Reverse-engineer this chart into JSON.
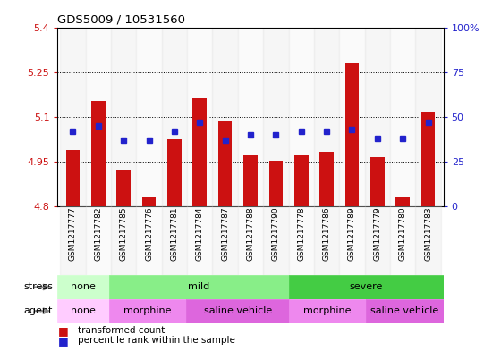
{
  "title": "GDS5009 / 10531560",
  "samples": [
    "GSM1217777",
    "GSM1217782",
    "GSM1217785",
    "GSM1217776",
    "GSM1217781",
    "GSM1217784",
    "GSM1217787",
    "GSM1217788",
    "GSM1217790",
    "GSM1217778",
    "GSM1217786",
    "GSM1217789",
    "GSM1217779",
    "GSM1217780",
    "GSM1217783"
  ],
  "bar_values": [
    4.99,
    5.155,
    4.925,
    4.83,
    5.025,
    5.165,
    5.085,
    4.975,
    4.955,
    4.975,
    4.985,
    5.285,
    4.965,
    4.83,
    5.12
  ],
  "dot_values": [
    42,
    45,
    37,
    37,
    42,
    47,
    37,
    40,
    40,
    42,
    42,
    43,
    38,
    38,
    47
  ],
  "bar_bottom": 4.8,
  "ylim_left": [
    4.8,
    5.4
  ],
  "ylim_right": [
    0,
    100
  ],
  "yticks_left": [
    4.8,
    4.95,
    5.1,
    5.25,
    5.4
  ],
  "yticks_right": [
    0,
    25,
    50,
    75,
    100
  ],
  "ytick_labels_left": [
    "4.8",
    "4.95",
    "5.1",
    "5.25",
    "5.4"
  ],
  "ytick_labels_right": [
    "0",
    "25",
    "50",
    "75",
    "100%"
  ],
  "hlines": [
    4.95,
    5.1,
    5.25
  ],
  "bar_color": "#cc1111",
  "dot_color": "#2222cc",
  "stress_groups": [
    {
      "label": "none",
      "start": 0,
      "end": 2,
      "color": "#ccffcc"
    },
    {
      "label": "mild",
      "start": 2,
      "end": 9,
      "color": "#88ee88"
    },
    {
      "label": "severe",
      "start": 9,
      "end": 15,
      "color": "#44cc44"
    }
  ],
  "agent_groups": [
    {
      "label": "none",
      "start": 0,
      "end": 2,
      "color": "#ffccff"
    },
    {
      "label": "morphine",
      "start": 2,
      "end": 5,
      "color": "#ee88ee"
    },
    {
      "label": "saline vehicle",
      "start": 5,
      "end": 9,
      "color": "#dd66dd"
    },
    {
      "label": "morphine",
      "start": 9,
      "end": 12,
      "color": "#ee88ee"
    },
    {
      "label": "saline vehicle",
      "start": 12,
      "end": 15,
      "color": "#dd66dd"
    }
  ],
  "legend_red_label": "transformed count",
  "legend_blue_label": "percentile rank within the sample",
  "bar_color_hex": "#cc1111",
  "dot_color_hex": "#2222cc"
}
